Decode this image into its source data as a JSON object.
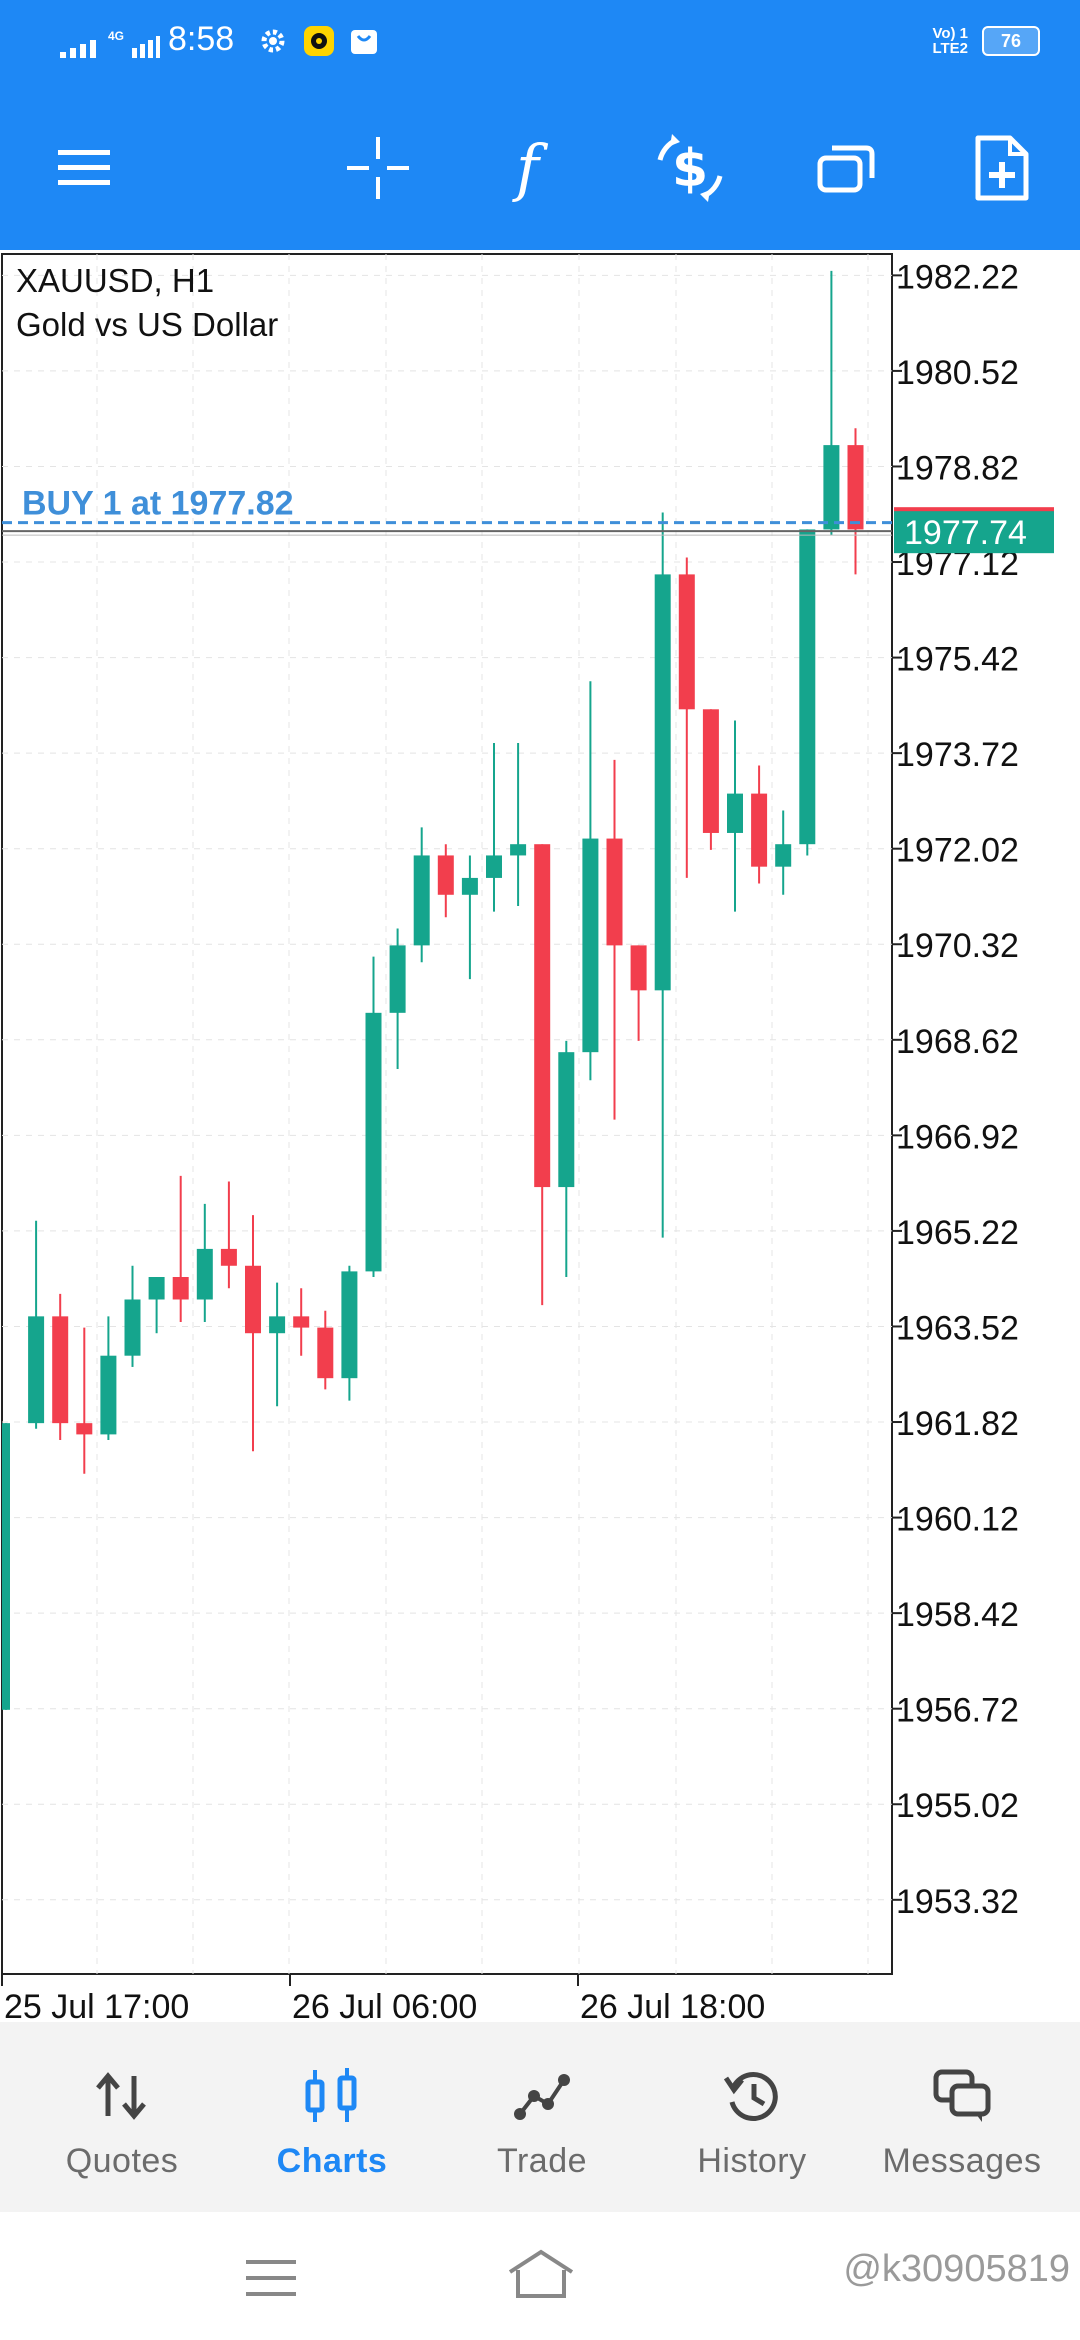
{
  "status_bar": {
    "network": "4G",
    "time": "8:58",
    "volte": "Vo) 1\nLTE2",
    "battery": "76"
  },
  "toolbar": {
    "icons": [
      "menu-icon",
      "crosshair-icon",
      "indicators-icon",
      "trade-icon",
      "windows-icon",
      "new-order-icon"
    ]
  },
  "chart": {
    "symbol": "XAUUSD, H1",
    "description": "Gold vs US Dollar",
    "position_label": "BUY 1 at 1977.82",
    "current_price": "1977.74",
    "colors": {
      "bull": "#15a58d",
      "bear": "#f23e4d",
      "position_line": "#3f8fd9",
      "grid": "#e4e4e4",
      "price_tag": "#15a58d"
    }
  },
  "chart_data": {
    "type": "candlestick",
    "symbol": "XAUUSD",
    "timeframe": "H1",
    "ylim": [
      1952.0,
      1982.6
    ],
    "y_ticks": [
      "1982.22",
      "1980.52",
      "1978.82",
      "1977.12",
      "1975.42",
      "1973.72",
      "1972.02",
      "1970.32",
      "1968.62",
      "1966.92",
      "1965.22",
      "1963.52",
      "1961.82",
      "1960.12",
      "1958.42",
      "1956.72",
      "1955.02",
      "1953.32"
    ],
    "x_labels": [
      "25 Jul 17:00",
      "26 Jul 06:00",
      "26 Jul 18:00"
    ],
    "x_label_candle_index": [
      1,
      13,
      25
    ],
    "position_price": 1977.82,
    "current_price": 1977.74,
    "candles": [
      {
        "o": 1956.7,
        "h": 1961.8,
        "l": 1956.7,
        "c": 1961.8
      },
      {
        "o": 1961.8,
        "h": 1965.4,
        "l": 1961.7,
        "c": 1963.7
      },
      {
        "o": 1963.7,
        "h": 1964.1,
        "l": 1961.5,
        "c": 1961.8
      },
      {
        "o": 1961.8,
        "h": 1963.5,
        "l": 1960.9,
        "c": 1961.6
      },
      {
        "o": 1961.6,
        "h": 1963.7,
        "l": 1961.5,
        "c": 1963.0
      },
      {
        "o": 1963.0,
        "h": 1964.6,
        "l": 1962.8,
        "c": 1964.0
      },
      {
        "o": 1964.0,
        "h": 1964.4,
        "l": 1963.4,
        "c": 1964.4
      },
      {
        "o": 1964.4,
        "h": 1966.2,
        "l": 1963.6,
        "c": 1964.0
      },
      {
        "o": 1964.0,
        "h": 1965.7,
        "l": 1963.6,
        "c": 1964.9
      },
      {
        "o": 1964.9,
        "h": 1966.1,
        "l": 1964.2,
        "c": 1964.6
      },
      {
        "o": 1964.6,
        "h": 1965.5,
        "l": 1961.3,
        "c": 1963.4
      },
      {
        "o": 1963.4,
        "h": 1964.3,
        "l": 1962.1,
        "c": 1963.7
      },
      {
        "o": 1963.7,
        "h": 1964.2,
        "l": 1963.0,
        "c": 1963.5
      },
      {
        "o": 1963.5,
        "h": 1963.8,
        "l": 1962.4,
        "c": 1962.6
      },
      {
        "o": 1962.6,
        "h": 1964.6,
        "l": 1962.2,
        "c": 1964.5
      },
      {
        "o": 1964.5,
        "h": 1970.1,
        "l": 1964.4,
        "c": 1969.1
      },
      {
        "o": 1969.1,
        "h": 1970.6,
        "l": 1968.1,
        "c": 1970.3
      },
      {
        "o": 1970.3,
        "h": 1972.4,
        "l": 1970.0,
        "c": 1971.9
      },
      {
        "o": 1971.9,
        "h": 1972.1,
        "l": 1970.8,
        "c": 1971.2
      },
      {
        "o": 1971.2,
        "h": 1971.9,
        "l": 1969.7,
        "c": 1971.5
      },
      {
        "o": 1971.5,
        "h": 1973.9,
        "l": 1970.9,
        "c": 1971.9
      },
      {
        "o": 1971.9,
        "h": 1973.9,
        "l": 1971.0,
        "c": 1972.1
      },
      {
        "o": 1972.1,
        "h": 1972.1,
        "l": 1963.9,
        "c": 1966.0
      },
      {
        "o": 1966.0,
        "h": 1968.6,
        "l": 1964.4,
        "c": 1968.4
      },
      {
        "o": 1968.4,
        "h": 1975.0,
        "l": 1967.9,
        "c": 1972.2
      },
      {
        "o": 1972.2,
        "h": 1973.6,
        "l": 1967.2,
        "c": 1970.3
      },
      {
        "o": 1970.3,
        "h": 1970.3,
        "l": 1968.6,
        "c": 1969.5
      },
      {
        "o": 1969.5,
        "h": 1978.0,
        "l": 1965.1,
        "c": 1976.9
      },
      {
        "o": 1976.9,
        "h": 1977.2,
        "l": 1971.5,
        "c": 1974.5
      },
      {
        "o": 1974.5,
        "h": 1974.5,
        "l": 1972.0,
        "c": 1972.3
      },
      {
        "o": 1972.3,
        "h": 1974.3,
        "l": 1970.9,
        "c": 1973.0
      },
      {
        "o": 1973.0,
        "h": 1973.5,
        "l": 1971.4,
        "c": 1971.7
      },
      {
        "o": 1971.7,
        "h": 1972.7,
        "l": 1971.2,
        "c": 1972.1
      },
      {
        "o": 1972.1,
        "h": 1977.7,
        "l": 1971.9,
        "c": 1977.7
      },
      {
        "o": 1977.7,
        "h": 1982.3,
        "l": 1977.6,
        "c": 1979.2
      },
      {
        "o": 1979.2,
        "h": 1979.5,
        "l": 1976.9,
        "c": 1977.7
      }
    ]
  },
  "bottom_nav": {
    "items": [
      {
        "label": "Quotes",
        "icon": "quotes-icon"
      },
      {
        "label": "Charts",
        "icon": "charts-icon"
      },
      {
        "label": "Trade",
        "icon": "trade-icon"
      },
      {
        "label": "History",
        "icon": "history-icon"
      },
      {
        "label": "Messages",
        "icon": "messages-icon"
      }
    ],
    "active": "Charts"
  },
  "system_nav": {
    "watermark": "@k30905819"
  }
}
